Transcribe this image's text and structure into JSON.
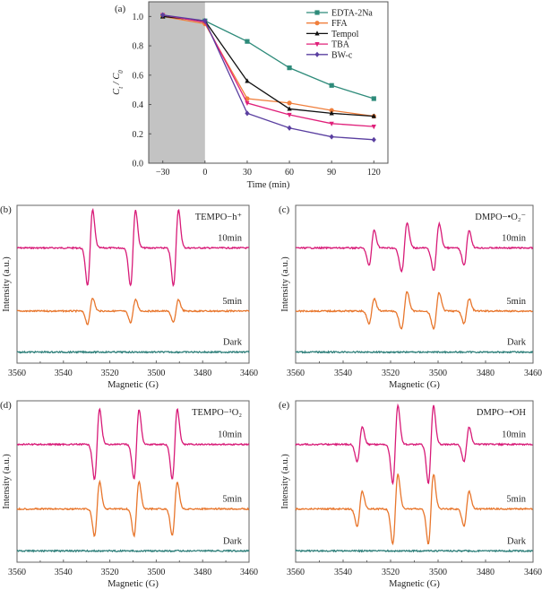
{
  "chart_data": [
    {
      "panel": "(a)",
      "type": "line",
      "title": "",
      "xlabel": "Time (min)",
      "ylabel": "Ct / C0",
      "x": [
        -30,
        0,
        30,
        60,
        90,
        120
      ],
      "xticks": [
        "−30",
        "0",
        "30",
        "60",
        "90",
        "120"
      ],
      "yticks": [
        "0.0",
        "0.2",
        "0.4",
        "0.6",
        "0.8",
        "1.0"
      ],
      "xlim": [
        -40,
        130
      ],
      "ylim": [
        0.0,
        1.1
      ],
      "dark_region": [
        -40,
        0
      ],
      "legend_position": "top-right",
      "series": [
        {
          "name": "EDTA-2Na",
          "color": "#2e8b7a",
          "marker": "square",
          "values": [
            1.0,
            0.97,
            0.83,
            0.65,
            0.53,
            0.44
          ]
        },
        {
          "name": "FFA",
          "color": "#f07f3c",
          "marker": "circle",
          "values": [
            1.0,
            0.95,
            0.44,
            0.41,
            0.36,
            0.32
          ]
        },
        {
          "name": "Tempol",
          "color": "#111111",
          "marker": "triangle-up",
          "values": [
            1.0,
            0.97,
            0.56,
            0.37,
            0.34,
            0.32
          ]
        },
        {
          "name": "TBA",
          "color": "#e0207a",
          "marker": "triangle-down",
          "values": [
            1.01,
            0.96,
            0.41,
            0.33,
            0.27,
            0.25
          ]
        },
        {
          "name": "BW-c",
          "color": "#5a3fa0",
          "marker": "diamond",
          "values": [
            1.01,
            0.97,
            0.34,
            0.24,
            0.18,
            0.16
          ]
        }
      ]
    },
    {
      "panel": "(b)",
      "type": "line",
      "annotation": "TEMPO−h⁺",
      "xlabel": "Magnetic (G)",
      "ylabel": "Intensity (a.u.)",
      "xlim": [
        3560,
        3460
      ],
      "xticks": [
        "3560",
        "3540",
        "3520",
        "3500",
        "3480",
        "3460"
      ],
      "series": [
        {
          "name": "10min",
          "color": "#d81b78",
          "peaks_G": [
            3528.5,
            3510,
            3491.5
          ],
          "amplitudes": [
            1.0,
            1.0,
            1.0
          ]
        },
        {
          "name": "5min",
          "color": "#e8762c",
          "peaks_G": [
            3528.5,
            3510,
            3491.5
          ],
          "amplitudes": [
            0.35,
            0.3,
            0.3
          ]
        },
        {
          "name": "Dark",
          "color": "#2e7f7a",
          "peaks_G": [],
          "amplitudes": []
        }
      ]
    },
    {
      "panel": "(c)",
      "type": "line",
      "annotation": "DMPO−•O₂⁻",
      "xlabel": "Magnetic (G)",
      "ylabel": "Intensity (a.u.)",
      "xlim": [
        3560,
        3460
      ],
      "xticks": [
        "3560",
        "3540",
        "3520",
        "3500",
        "3480",
        "3460"
      ],
      "series": [
        {
          "name": "10min",
          "color": "#d81b78",
          "peaks_G": [
            3528,
            3515,
            3514,
            3501.5,
            3500.5,
            3488
          ],
          "amplitudes": [
            0.85,
            0.35,
            1.0,
            0.3,
            1.0,
            0.85
          ]
        },
        {
          "name": "5min",
          "color": "#e8762c",
          "peaks_G": [
            3528,
            3515,
            3514,
            3501.5,
            3500.5,
            3488
          ],
          "amplitudes": [
            0.6,
            0.3,
            0.75,
            0.25,
            0.75,
            0.6
          ]
        },
        {
          "name": "Dark",
          "color": "#2e7f7a",
          "peaks_G": [],
          "amplitudes": []
        }
      ]
    },
    {
      "panel": "(d)",
      "type": "line",
      "annotation": "TEMPO−¹O₂",
      "xlabel": "Magnetic (G)",
      "ylabel": "Intensity (a.u.)",
      "xlim": [
        3560,
        3460
      ],
      "xticks": [
        "3560",
        "3540",
        "3520",
        "3500",
        "3480",
        "3460"
      ],
      "series": [
        {
          "name": "10min",
          "color": "#d81b78",
          "peaks_G": [
            3525.5,
            3508.5,
            3492
          ],
          "amplitudes": [
            0.9,
            0.9,
            0.9
          ]
        },
        {
          "name": "5min",
          "color": "#e8762c",
          "peaks_G": [
            3525.5,
            3508.5,
            3492
          ],
          "amplitudes": [
            0.7,
            0.7,
            0.7
          ]
        },
        {
          "name": "Dark",
          "color": "#2e7f7a",
          "peaks_G": [],
          "amplitudes": []
        }
      ]
    },
    {
      "panel": "(e)",
      "type": "line",
      "annotation": "DMPO−•OH",
      "xlabel": "Magnetic (G)",
      "ylabel": "Intensity (a.u.)",
      "xlim": [
        3560,
        3460
      ],
      "xticks": [
        "3560",
        "3540",
        "3520",
        "3500",
        "3480",
        "3460"
      ],
      "series": [
        {
          "name": "10min",
          "color": "#d81b78",
          "peaks_G": [
            3533,
            3518,
            3503,
            3488
          ],
          "amplitudes": [
            0.45,
            1.0,
            1.0,
            0.45
          ]
        },
        {
          "name": "5min",
          "color": "#e8762c",
          "peaks_G": [
            3533,
            3518,
            3503,
            3488
          ],
          "amplitudes": [
            0.45,
            0.9,
            0.9,
            0.45
          ]
        },
        {
          "name": "Dark",
          "color": "#2e7f7a",
          "peaks_G": [],
          "amplitudes": []
        }
      ]
    }
  ]
}
